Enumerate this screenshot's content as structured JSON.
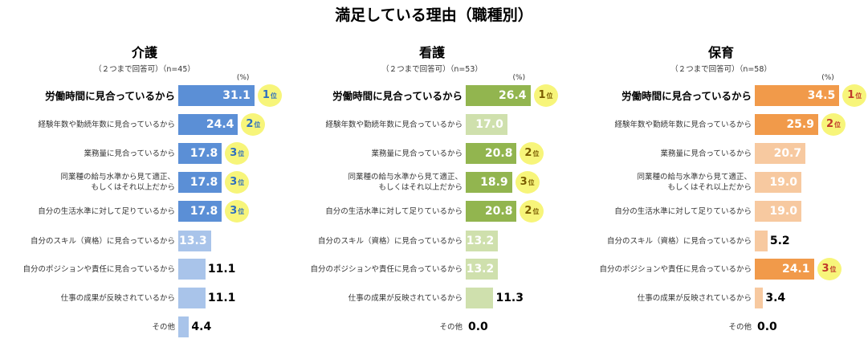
{
  "title": "満足している理由（職種別）",
  "unit": "(%)",
  "rank_suffix": "位",
  "rank_colors": {
    "1": "#2e6fbe",
    "2": "#2e6fbe",
    "3": "#2e6fbe"
  },
  "chart_data": [
    {
      "type": "bar",
      "title": "介護",
      "subtitle": "（２つまで回答可）（n=45）",
      "color": "#5b8fd6",
      "light_color": "#a9c4ea",
      "rank_text_color": "#2e6fbe",
      "categories": [
        "労働時間に見合っているから",
        "経験年数や勤続年数に見合っているから",
        "業務量に見合っているから",
        "同業種の給与水準から見て適正、\nもしくはそれ以上だから",
        "自分の生活水準に対して足りているから",
        "自分のスキル（資格）に見合っているから",
        "自分のポジションや責任に見合っているから",
        "仕事の成果が反映されているから",
        "その他"
      ],
      "labels": [
        "31.1",
        "24.4",
        "17.8",
        "17.8",
        "17.8",
        "13.3",
        "11.1",
        "11.1",
        "4.4"
      ],
      "values": [
        31.1,
        24.4,
        17.8,
        17.8,
        17.8,
        13.3,
        11.1,
        11.1,
        4.4
      ],
      "ranks": [
        1,
        2,
        3,
        3,
        3,
        null,
        null,
        null,
        null
      ]
    },
    {
      "type": "bar",
      "title": "看護",
      "subtitle": "（２つまで回答可）（n=53）",
      "color": "#92b54f",
      "light_color": "#cfe0ad",
      "rank_text_color": "#7a5c00",
      "categories": [
        "労働時間に見合っているから",
        "経験年数や勤続年数に見合っているから",
        "業務量に見合っているから",
        "同業種の給与水準から見て適正、\nもしくはそれ以上だから",
        "自分の生活水準に対して足りているから",
        "自分のスキル（資格）に見合っているから",
        "自分のポジションや責任に見合っているから",
        "仕事の成果が反映されているから",
        "その他"
      ],
      "labels": [
        "26.4",
        "17.0",
        "20.8",
        "18.9",
        "20.8",
        "13.2",
        "13.2",
        "11.3",
        "0.0"
      ],
      "values": [
        26.4,
        17.0,
        20.8,
        18.9,
        20.8,
        13.2,
        13.2,
        11.3,
        0.0
      ],
      "ranks": [
        1,
        null,
        2,
        3,
        2,
        null,
        null,
        null,
        null
      ]
    },
    {
      "type": "bar",
      "title": "保育",
      "subtitle": "（２つまで回答可）（n=58）",
      "color": "#f19a4a",
      "light_color": "#f7c9a0",
      "rank_text_color": "#c0392b",
      "categories": [
        "労働時間に見合っているから",
        "経験年数や勤続年数に見合っているから",
        "業務量に見合っているから",
        "同業種の給与水準から見て適正、\nもしくはそれ以上だから",
        "自分の生活水準に対して足りているから",
        "自分のスキル（資格）に見合っているから",
        "自分のポジションや責任に見合っているから",
        "仕事の成果が反映されているから",
        "その他"
      ],
      "labels": [
        "34.5",
        "25.9",
        "20.7",
        "19.0",
        "19.0",
        "5.2",
        "24.1",
        "3.4",
        "0.0"
      ],
      "values": [
        34.5,
        25.9,
        20.7,
        19.0,
        19.0,
        5.2,
        24.1,
        3.4,
        0.0
      ],
      "ranks": [
        1,
        2,
        null,
        null,
        null,
        null,
        3,
        null,
        null
      ]
    }
  ]
}
